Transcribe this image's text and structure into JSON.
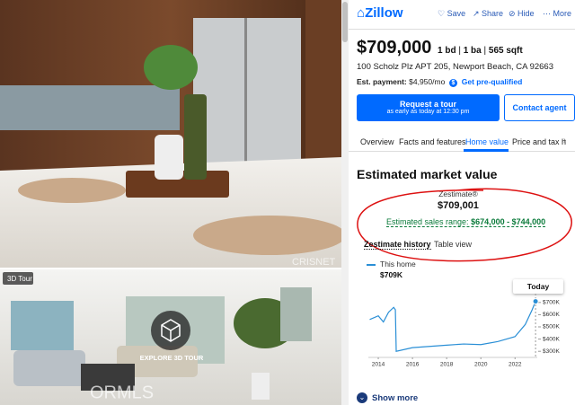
{
  "photos": {
    "tour_badge": "3D Tour",
    "tour_button": "EXPLORE 3D TOUR",
    "watermark_top": "CRISNET",
    "watermark_bottom": "ORMLS"
  },
  "header": {
    "logo": "Zillow",
    "actions": [
      "Save",
      "Share",
      "Hide",
      "More"
    ]
  },
  "listing": {
    "price": "$709,000",
    "beds": "1 bd",
    "baths": "1 ba",
    "sqft": "565 sqft",
    "address": "100 Scholz Plz APT 205, Newport Beach, CA 92663",
    "est_payment_label": "Est. payment:",
    "est_payment": "$4,950/mo",
    "prequalify": "Get pre-qualified"
  },
  "buttons": {
    "tour": "Request a tour",
    "tour_sub": "as early as today at 12:30 pm",
    "contact": "Contact agent"
  },
  "tabs": [
    "Overview",
    "Facts and features",
    "Home value",
    "Price and tax h"
  ],
  "value_section": {
    "title": "Estimated market value",
    "zestimate_label": "Zestimate®",
    "zestimate": "$709,001",
    "range_label": "Estimated sales range:",
    "range": "$674,000 - $744,000",
    "history_title": "Zestimate history",
    "table_view": "Table view",
    "current_value": "$709K",
    "today": "Today"
  },
  "show_more": "Show more",
  "chart_data": {
    "type": "line",
    "x": [
      2013.5,
      2014,
      2014.3,
      2014.6,
      2014.9,
      2015,
      2015.05,
      2016,
      2017,
      2018,
      2019,
      2020,
      2021,
      2022,
      2022.6,
      2023,
      2023.2
    ],
    "series": [
      {
        "name": "This home",
        "color": "#2a8fd6",
        "values": [
          560000,
          590000,
          540000,
          620000,
          660000,
          640000,
          300000,
          330000,
          340000,
          350000,
          360000,
          355000,
          380000,
          420000,
          520000,
          640000,
          709000
        ]
      }
    ],
    "xlim": [
      2013.42,
      2023.3
    ],
    "xticks": [
      2014,
      2016,
      2018,
      2020,
      2022
    ],
    "ylim": [
      250000,
      750000
    ],
    "yticks": [
      {
        "value": 300000,
        "label": "$300K"
      },
      {
        "value": 400000,
        "label": "$400K"
      },
      {
        "value": 500000,
        "label": "$500K"
      },
      {
        "value": 600000,
        "label": "$600K"
      },
      {
        "value": 700000,
        "label": "$700K"
      }
    ]
  }
}
